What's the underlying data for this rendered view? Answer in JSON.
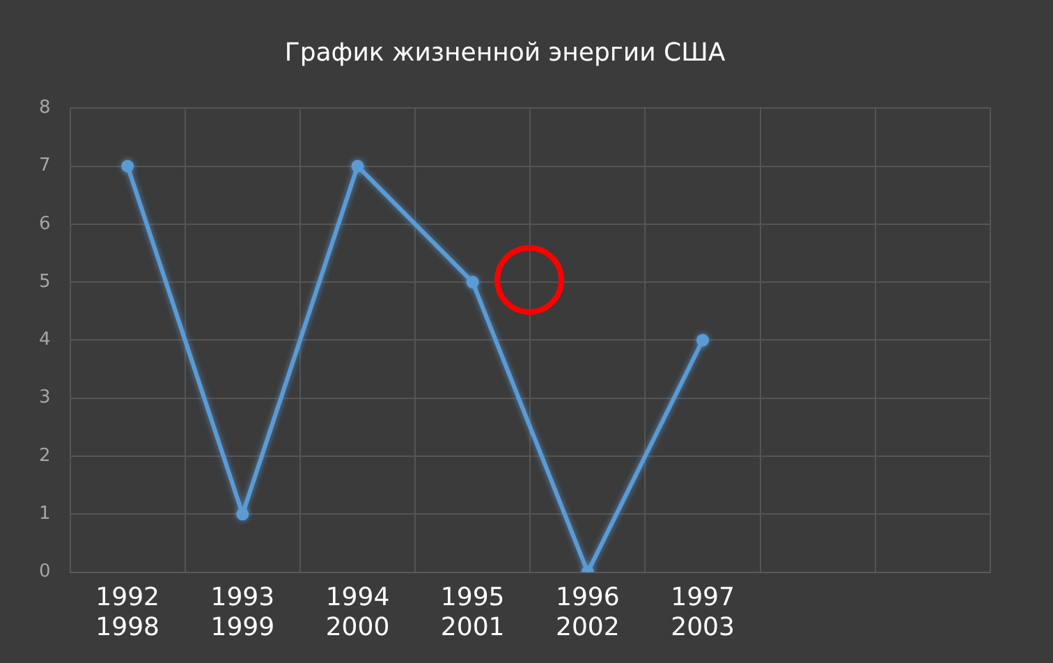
{
  "chart_data": {
    "type": "line",
    "title": "График жизненной энергии США",
    "categories": [
      "1992\n1998",
      "1993\n1999",
      "1994\n2000",
      "1995\n2001",
      "1996\n2002",
      "1997\n2003",
      null,
      null
    ],
    "series": [
      {
        "color": "#5b9bd5",
        "values": [
          7,
          1,
          7,
          5,
          0,
          4,
          null,
          null
        ]
      }
    ],
    "ylim": [
      0,
      8
    ],
    "yticks": [
      0,
      1,
      2,
      3,
      4,
      5,
      6,
      7,
      8
    ],
    "grid": true,
    "legend": false,
    "marker": "circle",
    "line_style": "solid"
  }
}
